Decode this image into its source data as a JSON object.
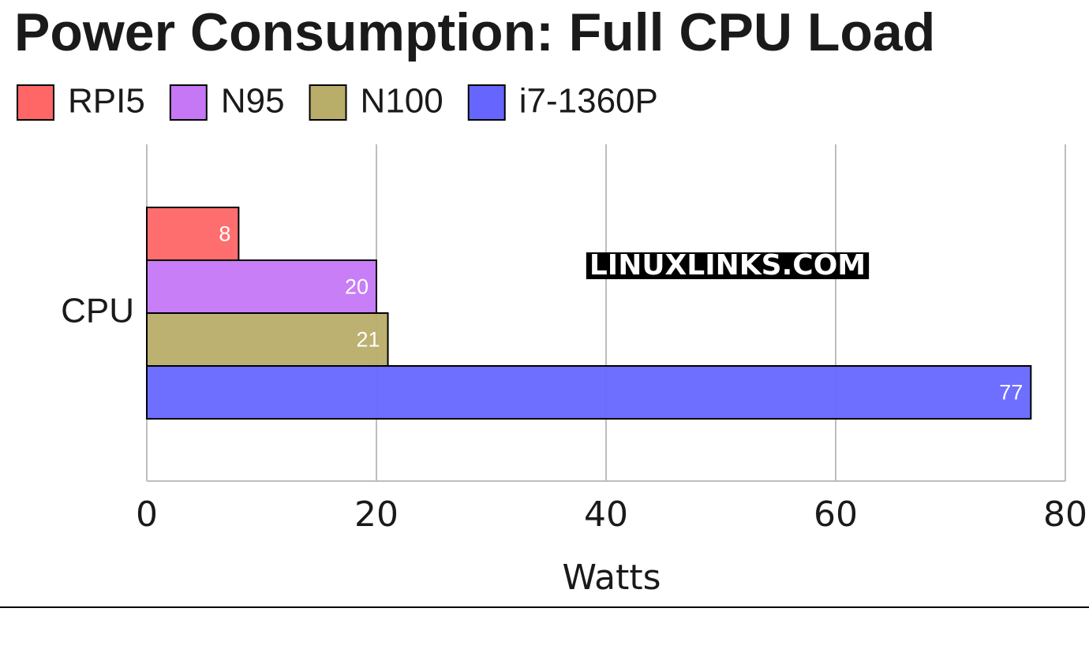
{
  "chart_data": {
    "type": "hbar",
    "title": "Power Consumption: Full CPU Load",
    "categories": [
      "CPU"
    ],
    "series": [
      {
        "name": "RPI5",
        "color": "#ff6666",
        "values": [
          8
        ]
      },
      {
        "name": "N95",
        "color": "#c577f5",
        "values": [
          20
        ]
      },
      {
        "name": "N100",
        "color": "#b8ad69",
        "values": [
          21
        ]
      },
      {
        "name": "i7-1360P",
        "color": "#6666ff",
        "values": [
          77
        ]
      }
    ],
    "xlim": [
      0,
      80
    ],
    "xticks": [
      0,
      20,
      40,
      60,
      80
    ],
    "grid": true,
    "xlabel": "Watts",
    "watermark": "LINUXLINKS.COM",
    "legend": "top"
  }
}
